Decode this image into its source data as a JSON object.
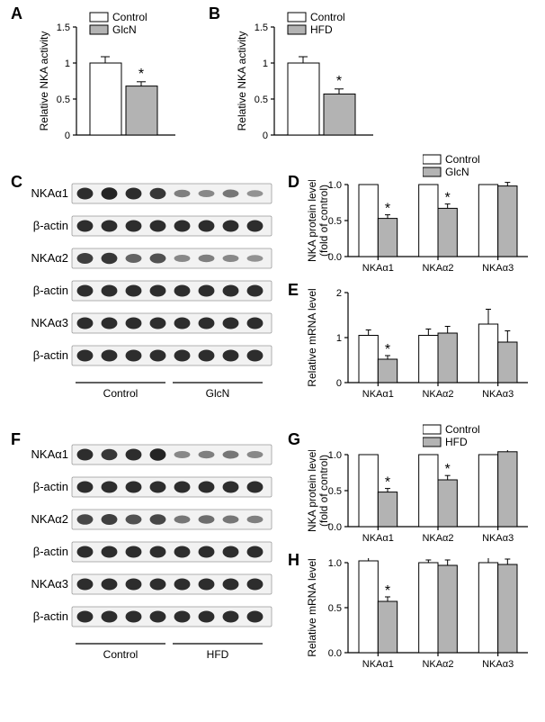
{
  "panels": {
    "A": {
      "label": "A"
    },
    "B": {
      "label": "B"
    },
    "C": {
      "label": "C"
    },
    "D": {
      "label": "D"
    },
    "E": {
      "label": "E"
    },
    "F": {
      "label": "F"
    },
    "G": {
      "label": "G"
    },
    "H": {
      "label": "H"
    }
  },
  "chartA": {
    "type": "bar",
    "ylabel": "Relative NKA activity",
    "ylim": [
      0,
      1.5
    ],
    "yticks": [
      0.0,
      0.5,
      1.0,
      1.5
    ],
    "bars": [
      {
        "label": "Control",
        "value": 1.0,
        "error": 0.09,
        "color": "#ffffff"
      },
      {
        "label": "GlcN",
        "value": 0.68,
        "error": 0.06,
        "color": "#b3b3b3",
        "sig": true
      }
    ],
    "legend": [
      {
        "swatch": "#ffffff",
        "text": "Control"
      },
      {
        "swatch": "#b3b3b3",
        "text": "GlcN"
      }
    ],
    "ylabel_fontsize": 12,
    "tick_fontsize": 11,
    "bar_width": 0.7,
    "background_color": "#ffffff",
    "axis_color": "#000000"
  },
  "chartB": {
    "type": "bar",
    "ylabel": "Relative NKA activity",
    "ylim": [
      0,
      1.5
    ],
    "yticks": [
      0.0,
      0.5,
      1.0,
      1.5
    ],
    "bars": [
      {
        "label": "Control",
        "value": 1.0,
        "error": 0.09,
        "color": "#ffffff"
      },
      {
        "label": "HFD",
        "value": 0.57,
        "error": 0.07,
        "color": "#b3b3b3",
        "sig": true
      }
    ],
    "legend": [
      {
        "swatch": "#ffffff",
        "text": "Control"
      },
      {
        "swatch": "#b3b3b3",
        "text": "HFD"
      }
    ],
    "ylabel_fontsize": 12,
    "tick_fontsize": 11,
    "bar_width": 0.7,
    "background_color": "#ffffff",
    "axis_color": "#000000"
  },
  "blotsC": {
    "rows": [
      {
        "label": "NKAα1",
        "type": "target"
      },
      {
        "label": "β-actin",
        "type": "loading"
      },
      {
        "label": "NKAα2",
        "type": "target"
      },
      {
        "label": "β-actin",
        "type": "loading"
      },
      {
        "label": "NKAα3",
        "type": "target"
      },
      {
        "label": "β-actin",
        "type": "loading"
      }
    ],
    "conditions": [
      "Control",
      "GlcN"
    ],
    "lanes_per_condition": 4
  },
  "blotsF": {
    "rows": [
      {
        "label": "NKAα1",
        "type": "target"
      },
      {
        "label": "β-actin",
        "type": "loading"
      },
      {
        "label": "NKAα2",
        "type": "target"
      },
      {
        "label": "β-actin",
        "type": "loading"
      },
      {
        "label": "NKAα3",
        "type": "target"
      },
      {
        "label": "β-actin",
        "type": "loading"
      }
    ],
    "conditions": [
      "Control",
      "HFD"
    ],
    "lanes_per_condition": 4
  },
  "chartD": {
    "type": "grouped-bar",
    "ylabel1": "NKA protein level",
    "ylabel2": "(fold of control)",
    "ylim": [
      0,
      1.0
    ],
    "yticks": [
      0.0,
      0.5,
      1.0
    ],
    "categories": [
      "NKAα1",
      "NKAα2",
      "NKAα3"
    ],
    "series": [
      {
        "name": "Control",
        "color": "#ffffff",
        "values": [
          1.0,
          1.0,
          1.0
        ],
        "errors": [
          0,
          0,
          0
        ]
      },
      {
        "name": "GlcN",
        "color": "#b3b3b3",
        "values": [
          0.53,
          0.67,
          0.98
        ],
        "errors": [
          0.05,
          0.06,
          0.05
        ],
        "sig": [
          true,
          true,
          false
        ]
      }
    ],
    "legend": [
      {
        "swatch": "#ffffff",
        "text": "Control"
      },
      {
        "swatch": "#b3b3b3",
        "text": "GlcN"
      }
    ]
  },
  "chartE": {
    "type": "grouped-bar",
    "ylabel": "Relative mRNA level",
    "ylim": [
      0,
      2
    ],
    "yticks": [
      0,
      1,
      2
    ],
    "categories": [
      "NKAα1",
      "NKAα2",
      "NKAα3"
    ],
    "series": [
      {
        "name": "Control",
        "color": "#ffffff",
        "values": [
          1.05,
          1.05,
          1.3
        ],
        "errors": [
          0.12,
          0.14,
          0.33
        ]
      },
      {
        "name": "GlcN",
        "color": "#b3b3b3",
        "values": [
          0.52,
          1.1,
          0.9
        ],
        "errors": [
          0.08,
          0.15,
          0.25
        ],
        "sig": [
          true,
          false,
          false
        ]
      }
    ]
  },
  "chartG": {
    "type": "grouped-bar",
    "ylabel1": "NKA protein level",
    "ylabel2": "(fold of control)",
    "ylim": [
      0,
      1.0
    ],
    "yticks": [
      0.0,
      0.5,
      1.0
    ],
    "categories": [
      "NKAα1",
      "NKAα2",
      "NKAα3"
    ],
    "series": [
      {
        "name": "Control",
        "color": "#ffffff",
        "values": [
          1.0,
          1.0,
          1.0
        ],
        "errors": [
          0,
          0,
          0
        ]
      },
      {
        "name": "HFD",
        "color": "#b3b3b3",
        "values": [
          0.48,
          0.65,
          1.04
        ],
        "errors": [
          0.05,
          0.06,
          0.06
        ],
        "sig": [
          true,
          true,
          false
        ]
      }
    ],
    "legend": [
      {
        "swatch": "#ffffff",
        "text": "Control"
      },
      {
        "swatch": "#b3b3b3",
        "text": "HFD"
      }
    ]
  },
  "chartH": {
    "type": "grouped-bar",
    "ylabel": "Relative mRNA level",
    "ylim": [
      0,
      1.0
    ],
    "yticks": [
      0.0,
      0.5,
      1.0
    ],
    "categories": [
      "NKAα1",
      "NKAα2",
      "NKAα3"
    ],
    "series": [
      {
        "name": "Control",
        "color": "#ffffff",
        "values": [
          1.02,
          1.0,
          1.0
        ],
        "errors": [
          0.08,
          0.03,
          0.07
        ]
      },
      {
        "name": "HFD",
        "color": "#b3b3b3",
        "values": [
          0.57,
          0.97,
          0.98
        ],
        "errors": [
          0.05,
          0.06,
          0.06
        ],
        "sig": [
          true,
          false,
          false
        ]
      }
    ]
  },
  "style": {
    "ctrl_color": "#ffffff",
    "treat_color": "#b3b3b3",
    "axis_color": "#000000",
    "background": "#ffffff",
    "font_family": "Arial"
  }
}
